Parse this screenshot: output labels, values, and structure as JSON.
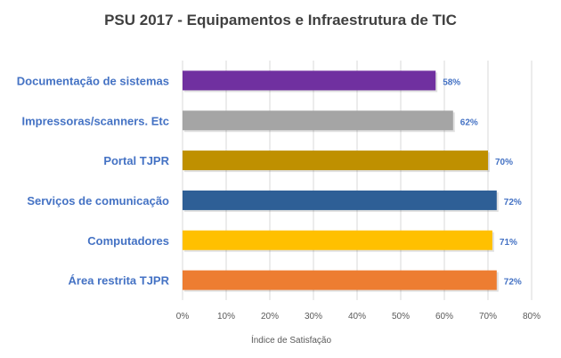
{
  "chart_data": {
    "type": "bar",
    "orientation": "horizontal",
    "title": "PSU 2017 - Equipamentos  e Infraestrutura  de TIC",
    "xlabel": "Índice de Satisfação",
    "ylabel": "",
    "xlim": [
      0,
      80
    ],
    "x_ticks": [
      "0%",
      "10%",
      "20%",
      "30%",
      "40%",
      "50%",
      "60%",
      "70%",
      "80%"
    ],
    "grid": "vertical",
    "legend": "none",
    "categories": [
      "Documentação de sistemas",
      "Impressoras/scanners. Etc",
      "Portal TJPR",
      "Serviços de comunicação",
      "Computadores",
      "Área restrita TJPR"
    ],
    "values": [
      58,
      62,
      70,
      72,
      71,
      72
    ],
    "data_labels": [
      "58%",
      "62%",
      "70%",
      "72%",
      "71%",
      "72%"
    ],
    "colors": [
      "#7030a0",
      "#a5a5a5",
      "#bf9000",
      "#2e5f96",
      "#ffc000",
      "#ed7d31"
    ]
  }
}
